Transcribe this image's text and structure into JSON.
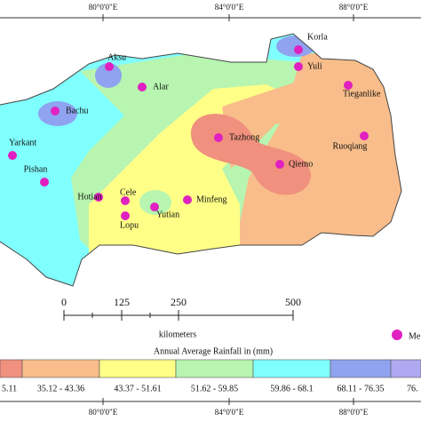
{
  "map": {
    "longitudes_top": [
      "80°0'0\"E",
      "84°0'0\"E",
      "88°0'0\"E"
    ],
    "longitudes_bottom": [
      "80°0'0\"E",
      "84°0'0\"E",
      "88°0'0\"E"
    ],
    "stations": [
      {
        "name": "Aksu"
      },
      {
        "name": "Korla"
      },
      {
        "name": "Yuli"
      },
      {
        "name": "Alar"
      },
      {
        "name": "Tieganlike"
      },
      {
        "name": "Bachu"
      },
      {
        "name": "Tazhong"
      },
      {
        "name": "Ruoqiang"
      },
      {
        "name": "Yarkant"
      },
      {
        "name": "Qiemo"
      },
      {
        "name": "Pishan"
      },
      {
        "name": "Hotian"
      },
      {
        "name": "Cele"
      },
      {
        "name": "Minfeng"
      },
      {
        "name": "Lopu"
      },
      {
        "name": "Yutian"
      }
    ],
    "scale_bar": {
      "ticks": [
        "0",
        "125",
        "250",
        "500"
      ],
      "unit": "kilometers"
    },
    "station_legend": "Me",
    "legend": {
      "title": "Annual Average  Rainfall in (mm)",
      "classes": [
        "5.11",
        "35.12 - 43.36",
        "43.37 - 51.61",
        "51.62 - 59.85",
        "59.86 - 68.1",
        "68.11 - 76.35",
        "76."
      ]
    }
  }
}
